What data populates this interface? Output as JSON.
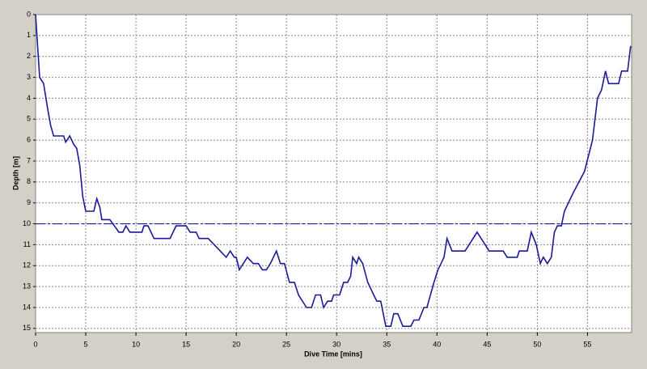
{
  "chart_data": {
    "type": "line",
    "x_label": "Dive Time [mins]",
    "y_label": "Depth [m]",
    "xlim": [
      0,
      59.4
    ],
    "xticks": [
      0,
      5,
      10,
      15,
      20,
      25,
      30,
      35,
      40,
      45,
      50,
      55
    ],
    "ylim": [
      0,
      15.2
    ],
    "yticks": [
      0,
      1,
      2,
      3,
      4,
      5,
      6,
      7,
      8,
      9,
      10,
      11,
      12,
      13,
      14,
      15
    ],
    "y_inverted": true,
    "grid": true,
    "reference_line": 10,
    "series": [
      {
        "name": "Depth",
        "color": "#1a1a9a",
        "x": [
          0,
          0.2,
          0.4,
          0.8,
          1.2,
          1.5,
          1.8,
          2.8,
          3.0,
          3.4,
          3.8,
          4.1,
          4.4,
          4.7,
          5.0,
          5.8,
          6.1,
          6.4,
          6.6,
          7.4,
          8.0,
          8.3,
          8.7,
          9.0,
          9.4,
          10.6,
          10.8,
          11.2,
          11.8,
          13.4,
          14.0,
          15.0,
          15.4,
          16.0,
          16.3,
          17.2,
          17.8,
          18.4,
          19.0,
          19.4,
          19.8,
          20.0,
          20.3,
          21.1,
          21.7,
          22.2,
          22.6,
          23.0,
          23.4,
          24.0,
          24.4,
          24.8,
          25.3,
          25.8,
          26.2,
          27.0,
          27.5,
          27.9,
          28.4,
          28.7,
          29.1,
          29.5,
          29.7,
          30.3,
          30.7,
          31.1,
          31.4,
          31.6,
          32.0,
          32.2,
          32.6,
          33.1,
          33.7,
          34.0,
          34.4,
          34.9,
          35.4,
          35.7,
          36.1,
          36.6,
          37.4,
          37.7,
          38.2,
          38.7,
          39.0,
          39.7,
          40.1,
          40.4,
          40.7,
          41.0,
          41.5,
          42.8,
          43.2,
          44.0,
          44.8,
          45.2,
          46.6,
          47.0,
          48.0,
          48.2,
          49.0,
          49.4,
          49.9,
          50.3,
          50.6,
          51.0,
          51.4,
          51.7,
          52.0,
          52.4,
          52.7,
          53.6,
          54.7,
          55.5,
          56.0,
          56.4,
          56.8,
          57.1,
          58.1,
          58.4,
          59.0,
          59.3
        ],
        "values": [
          0,
          1.5,
          3.0,
          3.3,
          4.5,
          5.3,
          5.8,
          5.8,
          6.1,
          5.8,
          6.2,
          6.4,
          7.2,
          8.7,
          9.4,
          9.4,
          8.8,
          9.2,
          9.8,
          9.8,
          10.2,
          10.4,
          10.4,
          10.1,
          10.4,
          10.4,
          10.1,
          10.1,
          10.7,
          10.7,
          10.1,
          10.1,
          10.4,
          10.4,
          10.7,
          10.7,
          11.0,
          11.3,
          11.6,
          11.3,
          11.6,
          11.6,
          12.2,
          11.6,
          11.9,
          11.9,
          12.2,
          12.2,
          11.9,
          11.3,
          11.9,
          11.9,
          12.8,
          12.8,
          13.4,
          14.0,
          14.0,
          13.4,
          13.4,
          14.0,
          13.7,
          13.7,
          13.4,
          13.4,
          12.8,
          12.8,
          12.5,
          11.6,
          11.9,
          11.6,
          11.9,
          12.8,
          13.4,
          13.7,
          13.7,
          14.9,
          14.9,
          14.3,
          14.3,
          14.9,
          14.9,
          14.6,
          14.6,
          14.0,
          14.0,
          12.8,
          12.2,
          11.9,
          11.6,
          10.7,
          11.3,
          11.3,
          11.0,
          10.4,
          11.0,
          11.3,
          11.3,
          11.6,
          11.6,
          11.3,
          11.3,
          10.4,
          11.0,
          11.9,
          11.6,
          11.9,
          11.6,
          10.4,
          10.1,
          10.1,
          9.4,
          8.5,
          7.5,
          6.0,
          4.0,
          3.6,
          2.7,
          3.3,
          3.3,
          2.7,
          2.7,
          1.5
        ]
      }
    ]
  }
}
